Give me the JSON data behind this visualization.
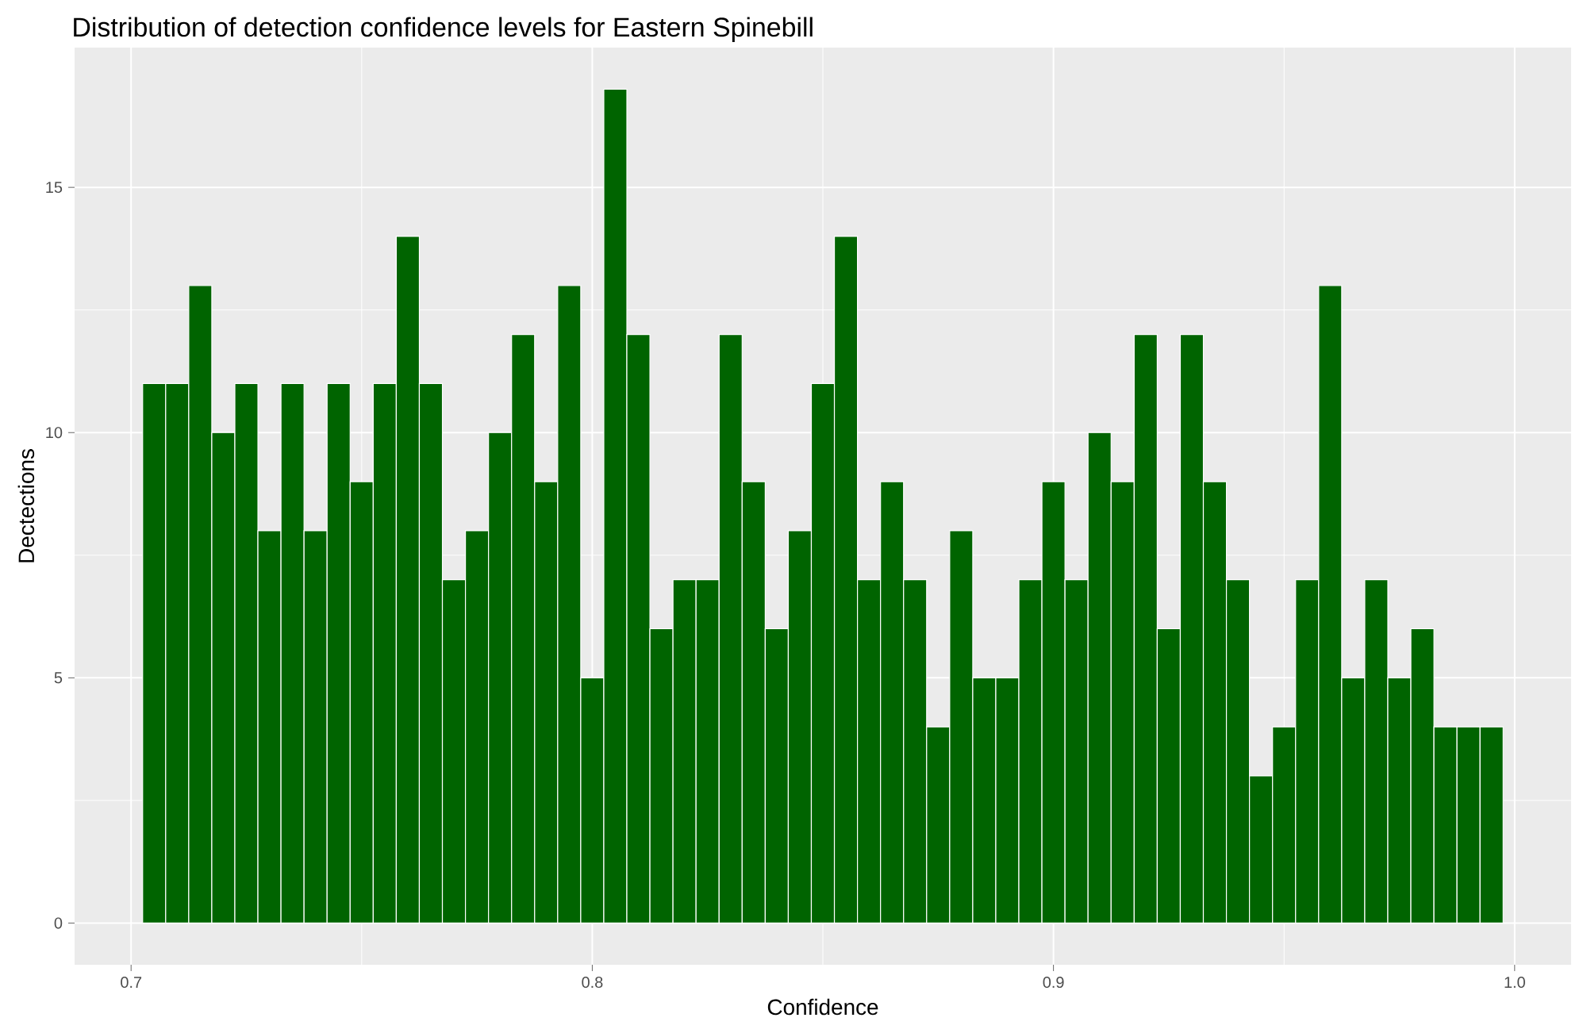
{
  "chart_data": {
    "type": "histogram",
    "title": "Distribution of detection confidence levels for Eastern Spinebill",
    "xlabel": "Confidence",
    "ylabel": "Dectections",
    "bins": [
      0.7025,
      0.7075,
      0.7125,
      0.7175,
      0.7225,
      0.7275,
      0.7325,
      0.7375,
      0.7425,
      0.7475,
      0.7525,
      0.7575,
      0.7625,
      0.7675,
      0.7725,
      0.7775,
      0.7825,
      0.7875,
      0.7925,
      0.7975,
      0.8025,
      0.8075,
      0.8125,
      0.8175,
      0.8225,
      0.8275,
      0.8325,
      0.8375,
      0.8425,
      0.8475,
      0.8525,
      0.8575,
      0.8625,
      0.8675,
      0.8725,
      0.8775,
      0.8825,
      0.8875,
      0.8925,
      0.8975,
      0.9025,
      0.9075,
      0.9125,
      0.9175,
      0.9225,
      0.9275,
      0.9325,
      0.9375,
      0.9425,
      0.9475,
      0.9525,
      0.9575,
      0.9625,
      0.9675,
      0.9725,
      0.9775,
      0.9825,
      0.9875,
      0.9925,
      0.9975
    ],
    "values": [
      11,
      11,
      13,
      10,
      11,
      8,
      11,
      8,
      11,
      9,
      11,
      14,
      11,
      7,
      8,
      10,
      12,
      9,
      13,
      5,
      17,
      12,
      6,
      7,
      7,
      12,
      9,
      6,
      8,
      11,
      14,
      7,
      9,
      7,
      4,
      8,
      5,
      5,
      7,
      9,
      7,
      10,
      9,
      12,
      6,
      12,
      9,
      7,
      3,
      4,
      7,
      13,
      5,
      7,
      5,
      6,
      4,
      4,
      4
    ],
    "color": "#006400",
    "xlim": [
      0.68775,
      1.01225
    ],
    "ylim": [
      -0.85,
      17.85
    ],
    "xticks": [
      0.7,
      0.8,
      0.9,
      {
        "value": 1,
        "label": "1.0"
      }
    ],
    "yticks": [
      0,
      5,
      10,
      15
    ],
    "grid": true
  }
}
